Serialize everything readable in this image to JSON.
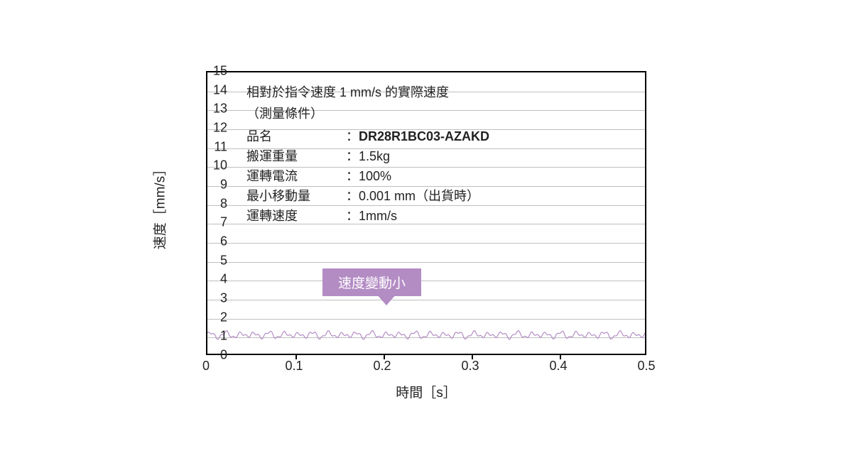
{
  "chart": {
    "type": "line",
    "x_axis_label": "時間［s］",
    "y_axis_label": "速度［mm/s］",
    "xlim": [
      0,
      0.5
    ],
    "ylim": [
      0,
      15
    ],
    "xticks": [
      0,
      0.1,
      0.2,
      0.3,
      0.4,
      0.5
    ],
    "xtick_labels": [
      "0",
      "0.1",
      "0.2",
      "0.3",
      "0.4",
      "0.5"
    ],
    "yticks": [
      0,
      1,
      2,
      3,
      4,
      5,
      6,
      7,
      8,
      9,
      10,
      11,
      12,
      13,
      14,
      15
    ],
    "ytick_labels": [
      "0",
      "1",
      "2",
      "3",
      "4",
      "5",
      "6",
      "7",
      "8",
      "9",
      "10",
      "11",
      "12",
      "13",
      "14",
      "15"
    ],
    "grid_color": "#bfbfbf",
    "axis_color": "#000000",
    "background_color": "#ffffff",
    "tick_fontsize": 18,
    "label_fontsize": 19,
    "series": {
      "baseline_value": 1.0,
      "noise_amplitude": 0.25,
      "stroke_color": "#b38cc4",
      "stroke_width": 1.2
    },
    "overlay": {
      "title_text": "相對於指令速度 1 mm/s 的實際速度",
      "condition_text": "（測量條件）",
      "rows": [
        {
          "label": "品名",
          "value": "DR28R1BC03-AZAKD",
          "bold_value": true
        },
        {
          "label": "搬運重量",
          "value": "1.5kg",
          "bold_value": false
        },
        {
          "label": "運轉電流",
          "value": "100%",
          "bold_value": false
        },
        {
          "label": "最小移動量",
          "value": "0.001 mm（出貨時）",
          "bold_value": false
        },
        {
          "label": "運轉速度",
          "value": "1mm/s",
          "bold_value": false
        }
      ],
      "text_color": "#222222",
      "fontsize": 18
    },
    "callout": {
      "text": "速度變動小",
      "bg_color": "#b38cc4",
      "text_color": "#ffffff",
      "fontsize": 19,
      "points_to_y": 1.0
    }
  }
}
